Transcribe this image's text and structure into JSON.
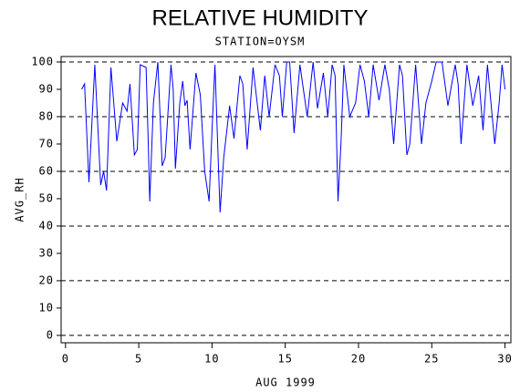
{
  "chart_data": {
    "type": "line",
    "title": "RELATIVE HUMIDITY",
    "subtitle": "STATION=OYSM",
    "x_label": "AUG 1999",
    "y_label": "AVG_RH",
    "xlim": [
      -0.3,
      30.4
    ],
    "ylim": [
      -2.7,
      102
    ],
    "xticks": [
      0,
      5,
      10,
      15,
      20,
      25,
      30
    ],
    "yticks": [
      0,
      10,
      20,
      30,
      40,
      50,
      60,
      70,
      80,
      90,
      100
    ],
    "grid": true,
    "x": [
      1.1,
      1.3,
      1.6,
      2.0,
      2.4,
      2.6,
      2.8,
      3.1,
      3.5,
      3.9,
      4.2,
      4.4,
      4.7,
      4.9,
      5.1,
      5.5,
      5.65,
      5.75,
      6.0,
      6.3,
      6.6,
      6.8,
      7.2,
      7.35,
      7.5,
      7.8,
      8.0,
      8.15,
      8.3,
      8.5,
      8.9,
      9.2,
      9.5,
      9.8,
      10.0,
      10.2,
      10.45,
      10.55,
      10.8,
      11.2,
      11.5,
      11.9,
      12.1,
      12.4,
      12.8,
      13.3,
      13.6,
      13.9,
      14.3,
      14.6,
      14.8,
      15.1,
      15.3,
      15.6,
      16.0,
      16.5,
      16.9,
      17.2,
      17.6,
      17.9,
      18.2,
      18.4,
      18.6,
      18.8,
      19.0,
      19.4,
      19.8,
      20.1,
      20.4,
      20.7,
      21.0,
      21.4,
      21.8,
      22.1,
      22.4,
      22.8,
      23.0,
      23.3,
      23.5,
      23.9,
      24.3,
      24.6,
      25.0,
      25.3,
      25.7,
      26.1,
      26.6,
      26.8,
      27.0,
      27.4,
      27.8,
      28.2,
      28.5,
      28.8,
      29.3,
      29.6,
      29.8,
      30.0
    ],
    "series": [
      {
        "name": "AVG_RH",
        "color": "#0000ff",
        "values": [
          90,
          92,
          56,
          99,
          55,
          60,
          53,
          98,
          71,
          85,
          82,
          92,
          66,
          68,
          99,
          98,
          70,
          49,
          85,
          100,
          62,
          65,
          99,
          90,
          61,
          85,
          93,
          84,
          86,
          68,
          96,
          88,
          60,
          49,
          75,
          99,
          60,
          45,
          65,
          84,
          72,
          95,
          92,
          68,
          98,
          75,
          95,
          80,
          99,
          95,
          80,
          100,
          100,
          74,
          99,
          80,
          100,
          83,
          96,
          80,
          99,
          95,
          49,
          70,
          99,
          80,
          85,
          99,
          93,
          80,
          99,
          86,
          99,
          90,
          70,
          99,
          95,
          66,
          70,
          99,
          70,
          85,
          93,
          100,
          100,
          84,
          99,
          92,
          70,
          99,
          84,
          95,
          75,
          99,
          70,
          85,
          99,
          90
        ]
      }
    ]
  }
}
